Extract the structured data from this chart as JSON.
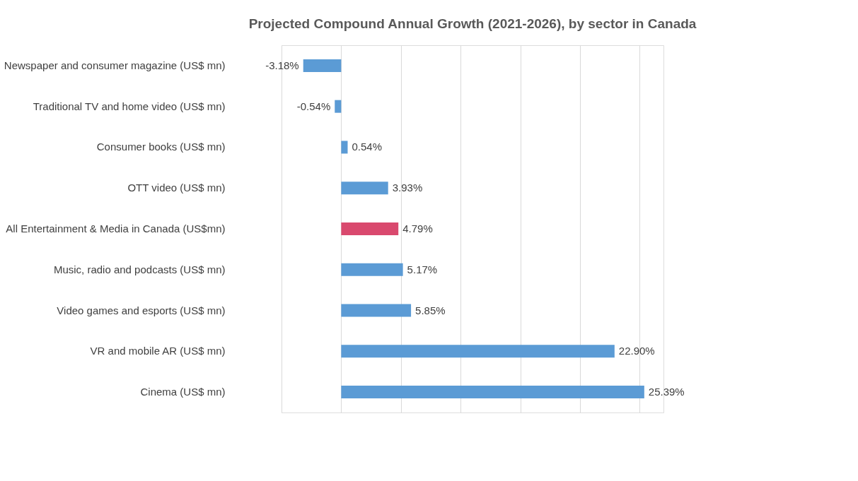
{
  "chart_data": {
    "type": "bar",
    "orientation": "horizontal",
    "title": "Projected Compound Annual Growth (2021-2026), by sector in Canada",
    "categories": [
      "Newspaper and consumer magazine (US$ mn)",
      "Traditional TV and home video (US$ mn)",
      "Consumer books (US$ mn)",
      "OTT video (US$ mn)",
      "All Entertainment & Media in Canada (US$mn)",
      "Music, radio and podcasts (US$ mn)",
      "Video games and esports (US$ mn)",
      "VR and mobile AR (US$ mn)",
      "Cinema (US$ mn)"
    ],
    "values": [
      -3.18,
      -0.54,
      0.54,
      3.93,
      4.79,
      5.17,
      5.85,
      22.9,
      25.39
    ],
    "value_labels": [
      "-3.18%",
      "-0.54%",
      "0.54%",
      "3.93%",
      "4.79%",
      "5.17%",
      "5.85%",
      "22.90%",
      "25.39%"
    ],
    "colors": [
      "#5b9bd5",
      "#5b9bd5",
      "#5b9bd5",
      "#5b9bd5",
      "#d9496e",
      "#5b9bd5",
      "#5b9bd5",
      "#5b9bd5",
      "#5b9bd5"
    ],
    "xlim": [
      -5,
      27
    ],
    "xticks": [
      {
        "value": -5,
        "label": null
      },
      {
        "value": 0,
        "label": null
      },
      {
        "value": 5,
        "label": null
      },
      {
        "value": 10,
        "label": null
      },
      {
        "value": 15,
        "label": null
      },
      {
        "value": 20,
        "label": null
      },
      {
        "value": 25,
        "label": null
      }
    ],
    "tick_labels": "y",
    "grid": "x"
  }
}
